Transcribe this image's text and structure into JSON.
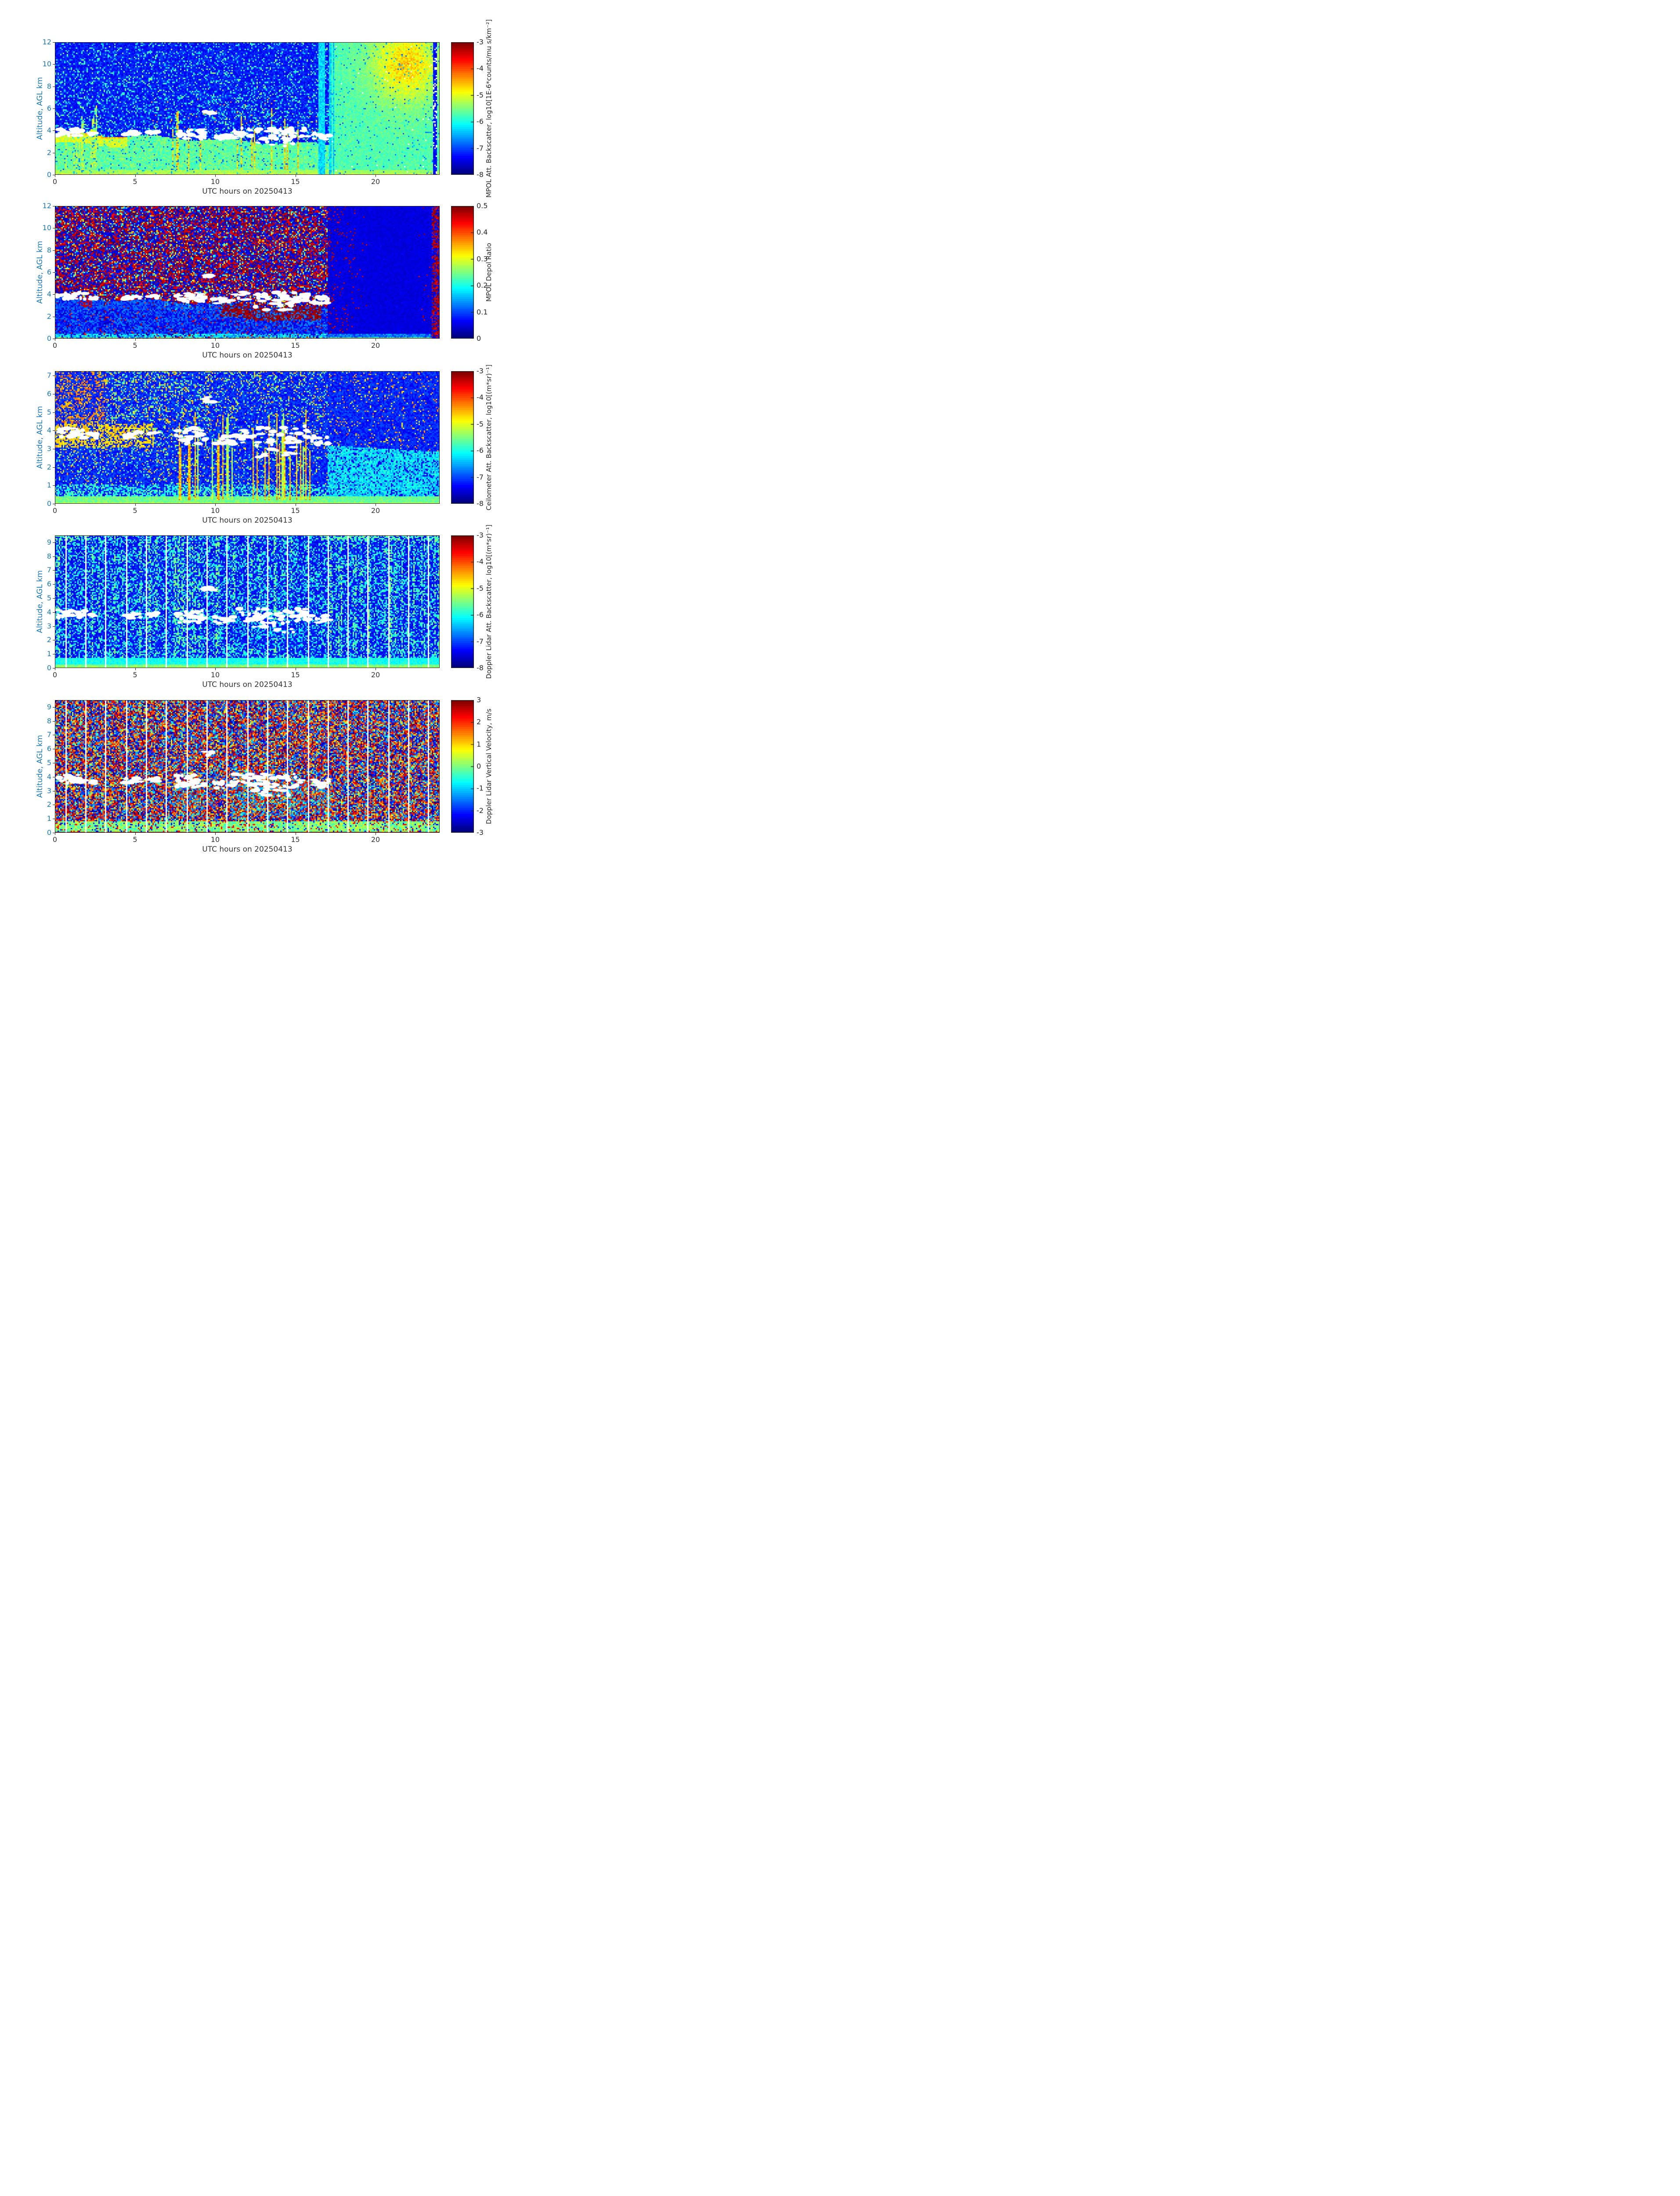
{
  "figure": {
    "background": "#ffffff",
    "y_axis_color": "#1b7ab8",
    "x_axis_color": "#333333",
    "colormap": "jet"
  },
  "chart_data": [
    {
      "type": "heatmap",
      "panel": "mpol-attenuated-backscatter",
      "xlabel": "UTC hours on 20250413",
      "ylabel": "Altitude, AGL km",
      "xlim": [
        0,
        24
      ],
      "xticks": [
        0,
        5,
        10,
        15,
        20
      ],
      "ylim": [
        0,
        12
      ],
      "yticks": [
        0,
        2,
        4,
        6,
        8,
        10,
        12
      ],
      "colorbar_label": "MPOL Att. Backscatter, log10[1E-6*counts/mu s/km⁻²]",
      "colorbar_ticks": [
        -3,
        -4,
        -5,
        -6,
        -7,
        -8
      ],
      "clim": [
        -8,
        -3
      ],
      "features": [
        "teal boundary-layer aerosol below ~4 km from 00-17 UTC, top descending ~3.9 to 2.8 km",
        "white cloud blobs along layer top near 3.5-4 km",
        "yellow-orange cloud and virga streaks 1-6 km between 06-17 UTC",
        "speckled dark-blue clear air aloft",
        "uniform teal column after ~17 UTC with yellow-green plume aloft ~20-23.5 UTC",
        "bright thin surface layer",
        "white dotted streak near 23.7 UTC"
      ]
    },
    {
      "type": "heatmap",
      "panel": "mpol-depol-ratio",
      "xlabel": "UTC hours on 20250413",
      "ylabel": "Altitude, AGL km",
      "xlim": [
        0,
        24
      ],
      "xticks": [
        0,
        5,
        10,
        15,
        20
      ],
      "ylim": [
        0,
        12
      ],
      "yticks": [
        0,
        2,
        4,
        6,
        8,
        10,
        12
      ],
      "colorbar_label": "MPOL Depol Ratio",
      "colorbar_ticks": [
        0.5,
        0.4,
        0.3,
        0.2,
        0.1,
        0
      ],
      "clim": [
        0,
        0.5
      ],
      "features": [
        "dense dark-red / dark-blue speckle noise aloft 00-17 UTC",
        "blue-cyan low depol below ~2.5 km",
        "dark-red high-depol patches 2.5-3.5 km between 10-16.5 UTC",
        "white cloud blobs near 3.5-4 km",
        "smooth dark-blue region after 17 UTC, darkest 20-22 UTC",
        "green-yellow surface line"
      ]
    },
    {
      "type": "heatmap",
      "panel": "ceilometer-attenuated-backscatter",
      "xlabel": "UTC hours on 20250413",
      "ylabel": "Altitude, AGL km",
      "xlim": [
        0,
        24
      ],
      "xticks": [
        0,
        5,
        10,
        15,
        20
      ],
      "ylim": [
        0,
        7.25
      ],
      "yticks": [
        0,
        1,
        2,
        3,
        4,
        5,
        6,
        7
      ],
      "colorbar_label": "Ceilometer Att. Backscatter, log10[(m*sr)⁻¹]",
      "colorbar_ticks": [
        -3,
        -4,
        -5,
        -6,
        -7,
        -8
      ],
      "clim": [
        -8,
        -3
      ],
      "features": [
        "dense yellow-orange speckle aloft, strongest top-left",
        "yellow cloud band 3-4.3 km from 00-06 UTC with white blobs",
        "yellow-orange precipitation streaks 0-5 km between 07-16 UTC",
        "cyan-green shallow layer after 17 UTC",
        "green surface layer"
      ]
    },
    {
      "type": "heatmap",
      "panel": "doppler-lidar-attenuated-backscatter",
      "xlabel": "UTC hours on 20250413",
      "ylabel": "Altitude, AGL km",
      "xlim": [
        0,
        24
      ],
      "xticks": [
        0,
        5,
        10,
        15,
        20
      ],
      "ylim": [
        0,
        9.5
      ],
      "yticks": [
        0,
        1,
        2,
        3,
        4,
        5,
        6,
        7,
        8,
        9
      ],
      "colorbar_label": "Doppler Lidar Att. Backscatter, log10[(m*sr)⁻¹]",
      "colorbar_ticks": [
        -3,
        -4,
        -5,
        -6,
        -7,
        -8
      ],
      "clim": [
        -8,
        -3
      ],
      "features": [
        "dark-blue field with cyan speckle and brighter columns",
        "white vertical scan-gap lines every ~1.3 h",
        "white cloud blobs 3.4-4.3 km from 00-17 UTC with virga to ~1.5 km between 11-15.7 UTC",
        "cyan-green surface layer below ~0.75 km"
      ]
    },
    {
      "type": "heatmap",
      "panel": "doppler-lidar-vertical-velocity",
      "xlabel": "UTC hours on 20250413",
      "ylabel": "Altitude, AGL km",
      "xlim": [
        0,
        24
      ],
      "xticks": [
        0,
        5,
        10,
        15,
        20
      ],
      "ylim": [
        0,
        9.5
      ],
      "yticks": [
        0,
        1,
        2,
        3,
        4,
        5,
        6,
        7,
        8,
        9
      ],
      "colorbar_label": "Doppler Lidar Vertical Velocity, m/s",
      "colorbar_ticks": [
        3,
        2,
        1,
        0,
        -1,
        -2,
        -3
      ],
      "clim": [
        -3,
        3
      ],
      "features": [
        "random red/blue velocity speckle aloft",
        "white vertical scan-gap lines every ~1.3 h",
        "white cloud blobs near 4 km with blue-cyan downdraft streaks below between 07-17 UTC",
        "green-yellow low-level band below ~0.85 km",
        "dark-red line at the surface"
      ]
    }
  ]
}
